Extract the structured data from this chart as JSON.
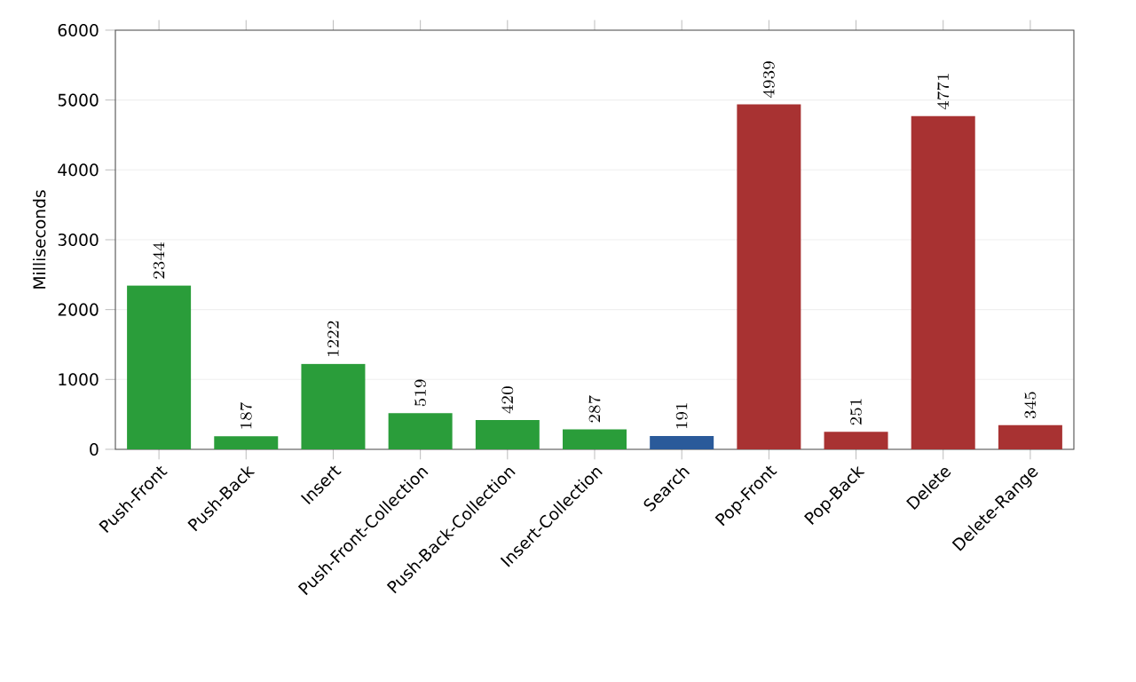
{
  "chart_data": {
    "type": "bar",
    "ylabel": "Milliseconds",
    "categories": [
      "Push-Front",
      "Push-Back",
      "Insert",
      "Push-Front-Collection",
      "Push-Back-Collection",
      "Insert-Collection",
      "Search",
      "Pop-Front",
      "Pop-Back",
      "Delete",
      "Delete-Range"
    ],
    "values": [
      2344,
      187,
      1222,
      519,
      420,
      287,
      191,
      4939,
      251,
      4771,
      345
    ],
    "colors": [
      "#2a9d3a",
      "#2a9d3a",
      "#2a9d3a",
      "#2a9d3a",
      "#2a9d3a",
      "#2a9d3a",
      "#2a5a9a",
      "#a83232",
      "#a83232",
      "#a83232",
      "#a83232"
    ],
    "ylim": [
      0,
      6000
    ],
    "yticks": [
      0,
      1000,
      2000,
      3000,
      4000,
      5000,
      6000
    ],
    "grid": "y",
    "data_labels": true
  }
}
